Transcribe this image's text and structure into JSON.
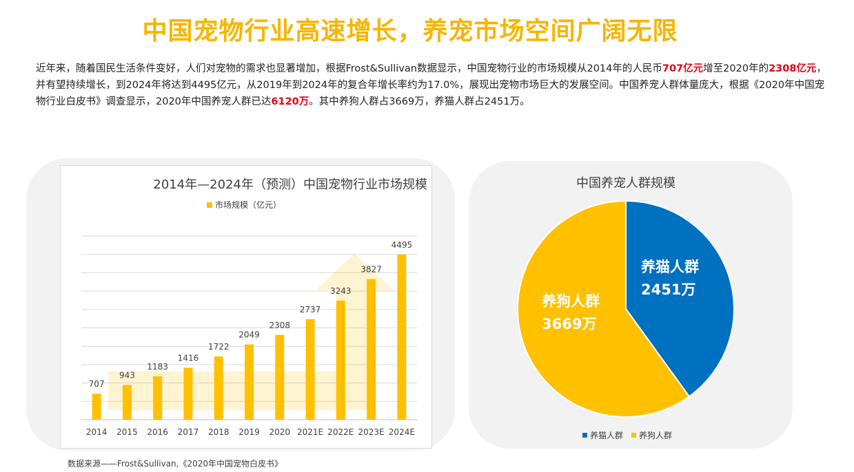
{
  "header": {
    "title": "中国宠物行业高速增长，养宠市场空间广阔无限"
  },
  "intro": {
    "p1": "近年来，随着国民生活条件变好，人们对宠物的需求也显著增加，根据Frost&Sullivan数据显示，中国宠物行业的市场规模从2014年的人民币",
    "h1": "707亿元",
    "p2": "增至2020年的",
    "h2": "2308亿元",
    "p3": "，并有望持续增长，到2024年将达到4495亿元，从2019年到2024年的复合年增长率约为17.0%，展现出宠物市场巨大的发展空间。中国养宠人群体量庞大，根据《2020年中国宠物行业白皮书》调查显示，2020年中国养宠人群已达",
    "h3": "6120万",
    "p4": "。其中养狗人群占3669万，养猫人群占2451万。"
  },
  "colors": {
    "bar": "#ffc000",
    "title": "#f7b500",
    "highlight": "#e60012",
    "cat": "#0070c0",
    "dog": "#ffc000"
  },
  "chart_data": [
    {
      "type": "bar",
      "title": "2014年—2024年（预测）中国宠物行业市场规模",
      "legend": [
        "市场规模（亿元）"
      ],
      "categories": [
        "2014",
        "2015",
        "2016",
        "2017",
        "2018",
        "2019",
        "2020",
        "2021E",
        "2022E",
        "2023E",
        "2024E"
      ],
      "series": [
        {
          "name": "市场规模（亿元）",
          "values": [
            707,
            943,
            1183,
            1416,
            1722,
            2049,
            2308,
            2737,
            3243,
            3827,
            4495
          ]
        }
      ],
      "ylim": [
        0,
        5000
      ],
      "grid": true,
      "legend_position": "top"
    },
    {
      "type": "pie",
      "title": "中国养宠人群规模",
      "slices": [
        {
          "name": "养猫人群",
          "value": 2451,
          "label": "养猫人群",
          "sublabel": "2451万",
          "color": "#0070c0"
        },
        {
          "name": "养狗人群",
          "value": 3669,
          "label": "养狗人群",
          "sublabel": "3669万",
          "color": "#ffc000"
        }
      ],
      "legend": [
        "养猫人群",
        "养狗人群"
      ],
      "legend_position": "bottom"
    }
  ],
  "source": "数据来源——Frost&Sullivan,《2020年中国宠物白皮书》"
}
